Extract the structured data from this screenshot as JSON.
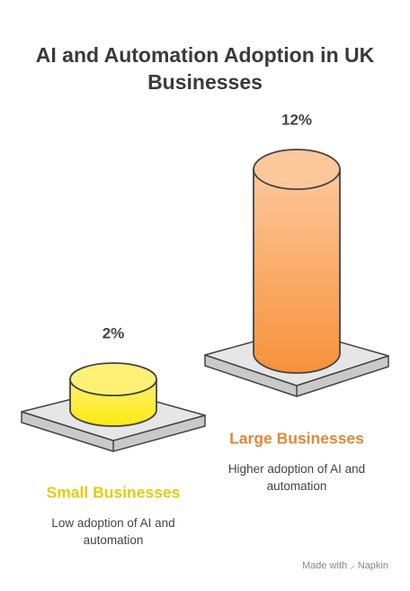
{
  "chart_data": {
    "type": "cylinder",
    "title": "AI and Automation Adoption in UK Businesses",
    "categories": [
      "Small Businesses",
      "Large Businesses"
    ],
    "values": [
      2,
      12
    ],
    "value_labels": [
      "2%",
      "12%"
    ],
    "descriptions": [
      "Low adoption of AI and automation",
      "Higher adoption of AI and automation"
    ],
    "colors": [
      [
        "#fff176",
        "#fde910"
      ],
      [
        "#fcc79b",
        "#f7913a"
      ]
    ],
    "label_colors": [
      "#e5cb12",
      "#e0883e"
    ]
  },
  "footer": {
    "prefix": "Made with",
    "brand": "Napkin"
  }
}
